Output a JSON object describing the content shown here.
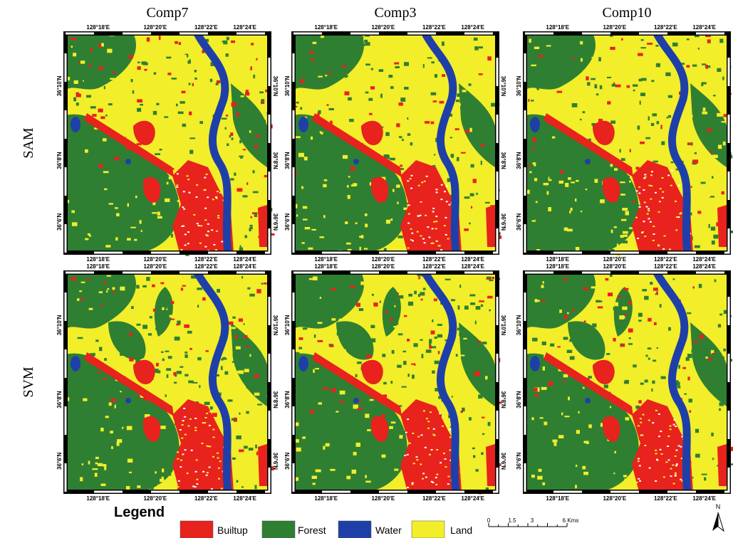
{
  "columns": [
    "Comp7",
    "Comp3",
    "Comp10"
  ],
  "rows": [
    "SAM",
    "SVM"
  ],
  "lon_ticks": [
    "128°18'E",
    "128°20'E",
    "128°22'E",
    "128°24'E"
  ],
  "lat_ticks": [
    "36°10'N",
    "36°8'N",
    "36°6'N"
  ],
  "legend": {
    "title": "Legend",
    "items": [
      {
        "label": "Builtup",
        "color": "#e8221c"
      },
      {
        "label": "Forest",
        "color": "#2f7f32"
      },
      {
        "label": "Water",
        "color": "#1f3fa8"
      },
      {
        "label": "Land",
        "color": "#f2ee2a"
      }
    ]
  },
  "scale_bar": [
    "0",
    "1.5",
    "3",
    "6 Kms"
  ],
  "north": "N"
}
